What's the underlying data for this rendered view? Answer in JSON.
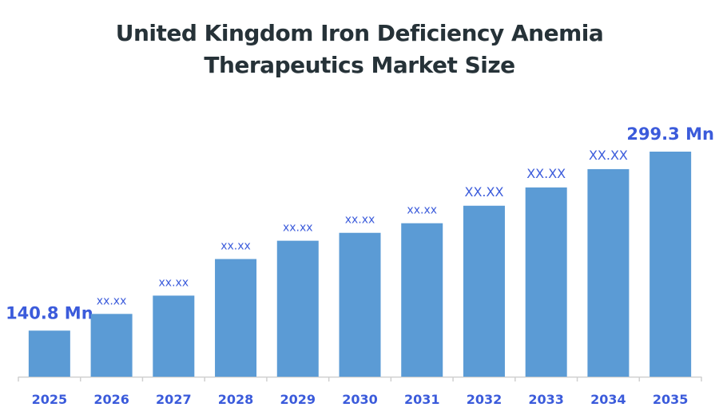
{
  "chart_data": {
    "type": "bar",
    "title_lines": [
      "United Kingdom Iron Deficiency Anemia",
      "Therapeutics Market Size"
    ],
    "categories": [
      "2025",
      "2026",
      "2027",
      "2028",
      "2029",
      "2030",
      "2031",
      "2032",
      "2033",
      "2034",
      "2035"
    ],
    "values": [
      140.8,
      155.6,
      171.8,
      204.2,
      220.4,
      227.4,
      235.9,
      251.4,
      267.6,
      283.8,
      299.3
    ],
    "data_labels": [
      "140.8 Mn",
      "xx.xx",
      "xx.xx",
      "xx.xx",
      "xx.xx",
      "xx.xx",
      "xx.xx",
      "XX.XX",
      "XX.XX",
      "XX.XX",
      "299.3 Mn"
    ],
    "xlabel": "",
    "ylabel": "",
    "ylim": [
      100,
      300
    ],
    "grid": false,
    "legend": "none",
    "colors": {
      "bar": "#5b9bd5",
      "label": "#3b5bdb",
      "title": "#263238",
      "axis": "#d0d0d0"
    }
  }
}
